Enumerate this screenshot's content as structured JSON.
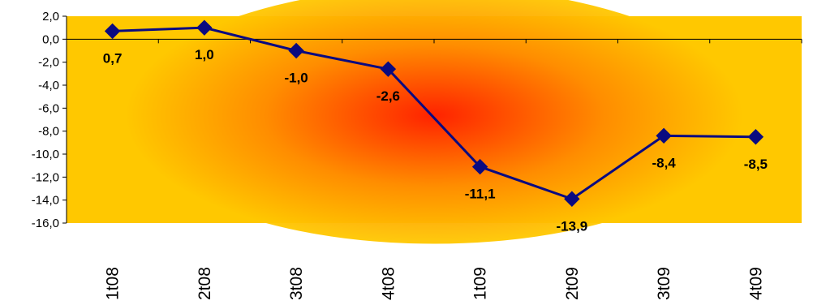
{
  "chart_data": {
    "type": "line",
    "categories": [
      "1t08",
      "2t08",
      "3t08",
      "4t08",
      "1t09",
      "2t09",
      "3t09",
      "4t09"
    ],
    "series": [
      {
        "values": [
          0.7,
          1.0,
          -1.0,
          -2.6,
          -11.1,
          -13.9,
          -8.4,
          -8.5
        ],
        "labels": [
          "0,7",
          "1,0",
          "-1,0",
          "-2,6",
          "-11,1",
          "-13,9",
          "-8,4",
          "-8,5"
        ]
      }
    ],
    "ylim": [
      -16,
      2
    ],
    "y_ticks": [
      2,
      0,
      -2,
      -4,
      -6,
      -8,
      -10,
      -12,
      -14,
      -16
    ],
    "y_tick_labels": [
      "2,0",
      "0,0",
      "-2,0",
      "-4,0",
      "-6,0",
      "-8,0",
      "-10,0",
      "-12,0",
      "-14,0",
      "-16,0"
    ],
    "title": "",
    "xlabel": "",
    "ylabel": "",
    "grid": false,
    "legend": "none",
    "x_tick_rotation": "vertical",
    "colors": {
      "line": "#0A0A80",
      "marker": "#0A0A80",
      "plot_bg_outer": "#FFC800",
      "plot_bg_center": "#FF1A00",
      "axis": "#000000"
    }
  }
}
